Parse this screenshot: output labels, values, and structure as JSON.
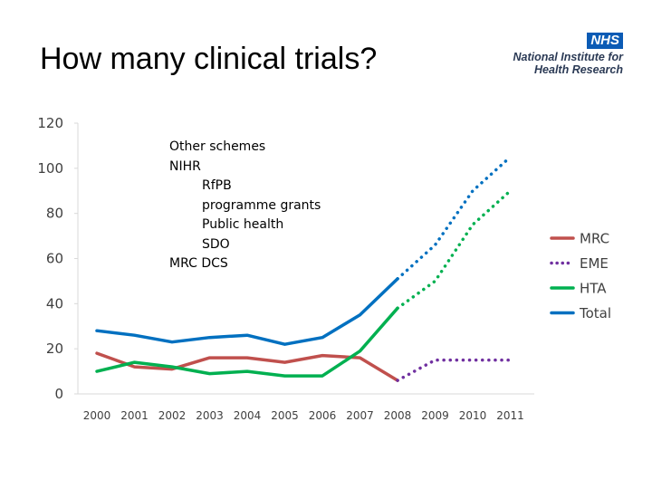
{
  "slide": {
    "title": "How many clinical trials?"
  },
  "logo": {
    "badge": "NHS",
    "line1": "National Institute for",
    "line2": "Health Research"
  },
  "annotation": {
    "top_items": [
      "Other schemes",
      "NIHR"
    ],
    "indented_items": [
      "RfPB",
      "programme grants",
      "Public health",
      "SDO"
    ],
    "bottom_items": [
      "MRC DCS"
    ]
  },
  "chart_data": {
    "type": "line",
    "title": "",
    "xlabel": "",
    "ylabel": "",
    "categories": [
      "2000",
      "2001",
      "2002",
      "2003",
      "2004",
      "2005",
      "2006",
      "2007",
      "2008",
      "2009",
      "2010",
      "2011"
    ],
    "ylim": [
      0,
      120
    ],
    "yticks": [
      0,
      20,
      40,
      60,
      80,
      100,
      120
    ],
    "grid": false,
    "legend_position": "right",
    "series": [
      {
        "name": "MRC",
        "color": "#c0504d",
        "style": "solid",
        "values": [
          18,
          12,
          11,
          16,
          16,
          14,
          17,
          16,
          6,
          null,
          null,
          null
        ]
      },
      {
        "name": "EME",
        "color": "#7030a0",
        "style": "dotted",
        "values": [
          null,
          null,
          null,
          null,
          null,
          null,
          null,
          null,
          6,
          15,
          15,
          15
        ]
      },
      {
        "name": "HTA",
        "color": "#00b050",
        "style": "solid+dotted",
        "values": [
          10,
          14,
          12,
          9,
          10,
          8,
          8,
          19,
          38,
          50,
          75,
          90
        ],
        "projected_from_index": 8
      },
      {
        "name": "Total",
        "color": "#0070c0",
        "style": "solid+dotted",
        "values": [
          28,
          26,
          23,
          25,
          26,
          22,
          25,
          35,
          51,
          66,
          90,
          105
        ],
        "projected_from_index": 8
      }
    ],
    "legend_order": [
      "MRC",
      "EME",
      "HTA",
      "Total"
    ]
  }
}
